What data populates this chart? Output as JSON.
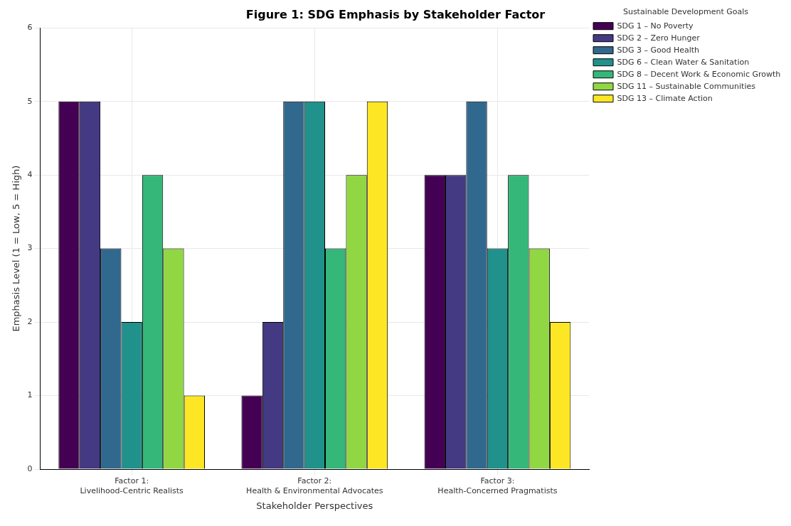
{
  "chart_data": {
    "type": "bar",
    "title": "Figure 1: SDG Emphasis by Stakeholder Factor",
    "xlabel": "Stakeholder Perspectives",
    "ylabel": "Emphasis Level (1 = Low, 5 = High)",
    "legend_title": "Sustainable Development Goals",
    "categories": [
      "Factor 1:\nLivelihood-Centric Realists",
      "Factor 2:\nHealth & Environmental Advocates",
      "Factor 3:\nHealth-Concerned Pragmatists"
    ],
    "series": [
      {
        "name": "SDG 1 – No Poverty",
        "color": "#440154",
        "values": [
          5,
          1,
          4
        ]
      },
      {
        "name": "SDG 2 – Zero Hunger",
        "color": "#443983",
        "values": [
          5,
          2,
          4
        ]
      },
      {
        "name": "SDG 3 – Good Health",
        "color": "#31688e",
        "values": [
          3,
          5,
          5
        ]
      },
      {
        "name": "SDG 6 – Clean Water & Sanitation",
        "color": "#21918c",
        "values": [
          2,
          5,
          3
        ]
      },
      {
        "name": "SDG 8 – Decent Work & Economic Growth",
        "color": "#35b779",
        "values": [
          4,
          3,
          4
        ]
      },
      {
        "name": "SDG 11 – Sustainable Communities",
        "color": "#90d743",
        "values": [
          3,
          4,
          3
        ]
      },
      {
        "name": "SDG 13 – Climate Action",
        "color": "#fde725",
        "values": [
          1,
          5,
          2
        ]
      }
    ],
    "ylim": [
      0,
      6
    ],
    "yticks": [
      0,
      1,
      2,
      3,
      4,
      5,
      6
    ],
    "grid": true,
    "legend": "top right"
  }
}
